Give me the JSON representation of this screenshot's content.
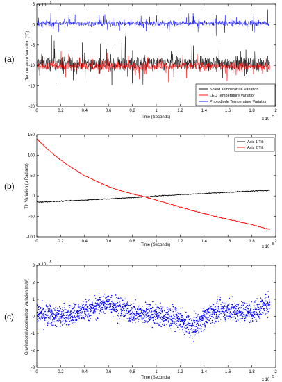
{
  "chart_data": [
    {
      "panel_label": "(a)",
      "type": "line",
      "xlabel": "Time (Seconds)",
      "ylabel": "Temperature Variation (°C)",
      "x_multiplier": "x 10",
      "x_multiplier_exp": "5",
      "y_multiplier": "x 10",
      "y_multiplier_exp": "-3",
      "xlim": [
        0,
        2
      ],
      "ylim": [
        -20,
        5
      ],
      "xticks": [
        "0",
        "0.2",
        "0.4",
        "0.6",
        "0.8",
        "1",
        "1.2",
        "1.4",
        "1.6",
        "1.8",
        "2"
      ],
      "yticks": [
        "5",
        "0",
        "-5",
        "-10",
        "-15",
        "-20"
      ],
      "legend_position": "bottom-right",
      "grid": false,
      "series": [
        {
          "name": "Shield Temperature Variation",
          "color": "#000000",
          "mean": -9.5,
          "noise": 2.2,
          "spike": 6.5
        },
        {
          "name": "LED Temperature Variatior",
          "color": "#ff0000",
          "mean": -10.2,
          "noise": 1.3,
          "spike": 3.2
        },
        {
          "name": "Photodiode Temperature Variatior",
          "color": "#0000ff",
          "mean": 0.3,
          "noise": 0.9,
          "spike": 3.0
        }
      ]
    },
    {
      "panel_label": "(b)",
      "type": "line",
      "xlabel": "Time (Seconds)",
      "ylabel": "Tilt Variation (μ Radians)",
      "x_multiplier": "x 10",
      "x_multiplier_exp": "5",
      "xlim": [
        0,
        2
      ],
      "ylim": [
        -100,
        150
      ],
      "xticks": [
        "0",
        "0.2",
        "0.4",
        "0.6",
        "0.8",
        "1",
        "1.2",
        "1.4",
        "1.6",
        "1.8",
        "2"
      ],
      "yticks": [
        "150",
        "100",
        "50",
        "0",
        "-50",
        "-100"
      ],
      "legend_position": "top-right",
      "grid": false,
      "series": [
        {
          "name": "Axis 1 Tilt",
          "color": "#000000",
          "x": [
            0,
            0.2,
            0.4,
            0.6,
            0.8,
            1.0,
            1.2,
            1.4,
            1.6,
            1.8,
            1.95
          ],
          "y": [
            -15,
            -13,
            -10,
            -7,
            -4,
            0,
            3,
            6,
            9,
            12,
            14
          ]
        },
        {
          "name": "Axis 2 Tilt",
          "color": "#ff0000",
          "x": [
            0,
            0.1,
            0.2,
            0.3,
            0.4,
            0.5,
            0.6,
            0.7,
            0.8,
            0.9,
            1.0,
            1.2,
            1.4,
            1.6,
            1.8,
            1.95
          ],
          "y": [
            140,
            112,
            88,
            68,
            50,
            36,
            23,
            13,
            5,
            -2,
            -10,
            -27,
            -43,
            -57,
            -70,
            -82
          ]
        }
      ]
    },
    {
      "panel_label": "(c)",
      "type": "scatter",
      "xlabel": "Time (Seconds)",
      "ylabel": "Gravitational Acceleration Variation (m/s²)",
      "x_multiplier": "x 10",
      "x_multiplier_exp": "5",
      "y_multiplier": "x 10",
      "y_multiplier_exp": "-5",
      "xlim": [
        0,
        2
      ],
      "ylim": [
        -3,
        3
      ],
      "xticks": [
        "0",
        "0.2",
        "0.4",
        "0.6",
        "0.8",
        "1",
        "1.2",
        "1.4",
        "1.6",
        "1.8",
        "2"
      ],
      "yticks": [
        "3",
        "2",
        "1",
        "0",
        "-1",
        "-2",
        "-3"
      ],
      "grid": false,
      "series": [
        {
          "color": "#0000ff",
          "trend_x": [
            0,
            0.2,
            0.4,
            0.6,
            0.8,
            1.0,
            1.2,
            1.3,
            1.45,
            1.6,
            1.8,
            1.95
          ],
          "trend_y": [
            0.1,
            0.0,
            0.3,
            0.8,
            0.2,
            0.1,
            -0.2,
            -0.7,
            0.2,
            0.4,
            0.2,
            0.8
          ],
          "noise": 0.45
        }
      ]
    }
  ]
}
